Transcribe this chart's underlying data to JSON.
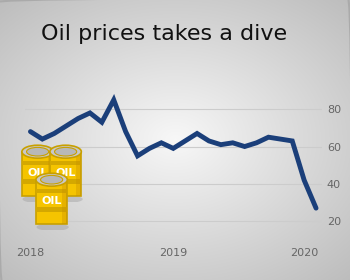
{
  "title": "Oil prices takes a dive",
  "title_fontsize": 16,
  "line_color": "#1b3f7a",
  "line_width": 3.5,
  "x_data": [
    0,
    1,
    2,
    3,
    4,
    5,
    6,
    7,
    8,
    9,
    10,
    11,
    12,
    13,
    14,
    15,
    16,
    17,
    18,
    19,
    20,
    21,
    22,
    23,
    24
  ],
  "y_data": [
    68,
    64,
    67,
    71,
    75,
    78,
    73,
    85,
    68,
    55,
    59,
    62,
    59,
    63,
    67,
    63,
    61,
    62,
    60,
    62,
    65,
    64,
    63,
    42,
    27
  ],
  "x_ticks": [
    0,
    12,
    23
  ],
  "x_tick_labels": [
    "2018",
    "2019",
    "2020"
  ],
  "y_ticks": [
    20,
    40,
    60,
    80
  ],
  "ylim": [
    8,
    95
  ],
  "xlim": [
    -0.5,
    24.5
  ],
  "grid_color": "#cccccc",
  "tick_color": "#666666",
  "tick_fontsize": 8,
  "barrel_color": "#F5C400",
  "barrel_stripe_color": "#D4A800",
  "barrel_top_color": "#c8c8c8",
  "barrel_edge_color": "#c8a000",
  "oil_text_color": "#ffffff"
}
